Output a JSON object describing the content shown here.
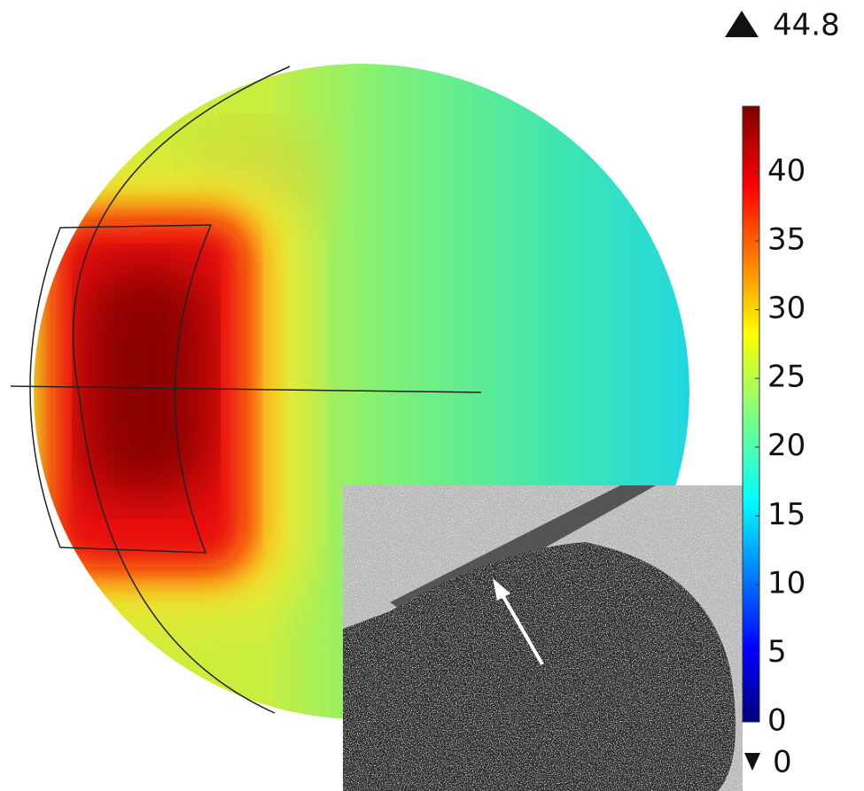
{
  "chart_data": {
    "type": "surface-colormap",
    "colorbar": {
      "clim": [
        0,
        44.8
      ],
      "ticks": [
        0,
        5,
        10,
        15,
        20,
        25,
        30,
        35,
        40
      ],
      "colormap": "jet"
    },
    "max": 44.8,
    "min": 0
  }
}
